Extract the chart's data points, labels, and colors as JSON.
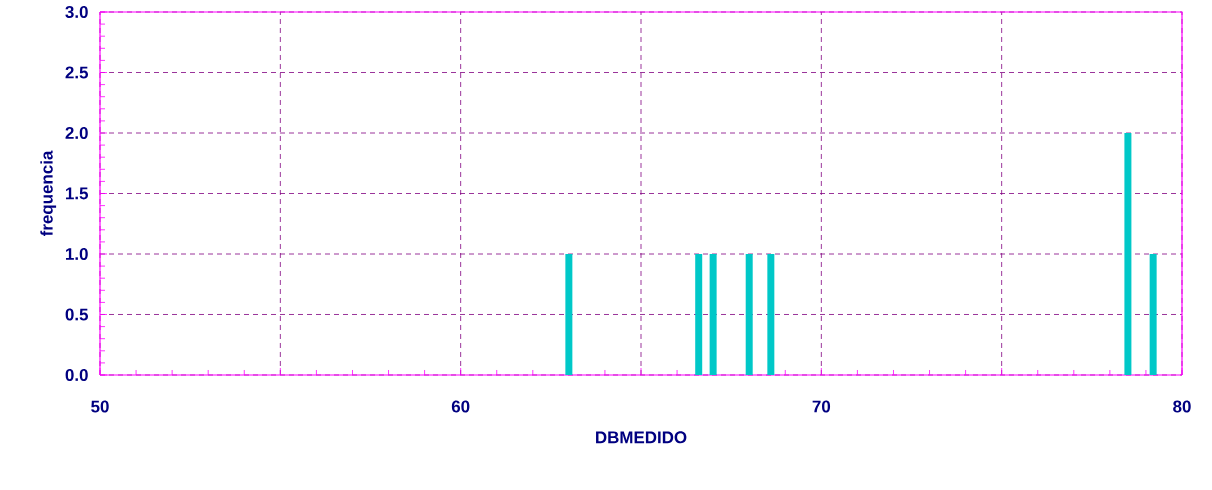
{
  "chart_data": {
    "type": "bar",
    "xlabel": "DBMEDIDO",
    "ylabel": "frequencia",
    "x": [
      63.0,
      66.6,
      67.0,
      68.0,
      68.6,
      78.5,
      79.2
    ],
    "values": [
      1,
      1,
      1,
      1,
      1,
      2,
      1
    ],
    "color": "#00c8c8",
    "xlim": [
      50,
      80
    ],
    "xticks": [
      50,
      {
        "value": 55,
        "label": null
      },
      60,
      {
        "value": 65,
        "label": null
      },
      70,
      {
        "value": 75,
        "label": null
      },
      80
    ],
    "ylim": [
      0,
      3
    ],
    "yticks": [
      {
        "value": 0,
        "label": "0.0"
      },
      {
        "value": 0.5,
        "label": "0.5"
      },
      {
        "value": 1,
        "label": "1.0"
      },
      {
        "value": 1.5,
        "label": "1.5"
      },
      {
        "value": 2,
        "label": "2.0"
      },
      {
        "value": 2.5,
        "label": "2.5"
      },
      {
        "value": 3,
        "label": "3.0"
      }
    ],
    "grid": true,
    "line_style": "dashed"
  }
}
